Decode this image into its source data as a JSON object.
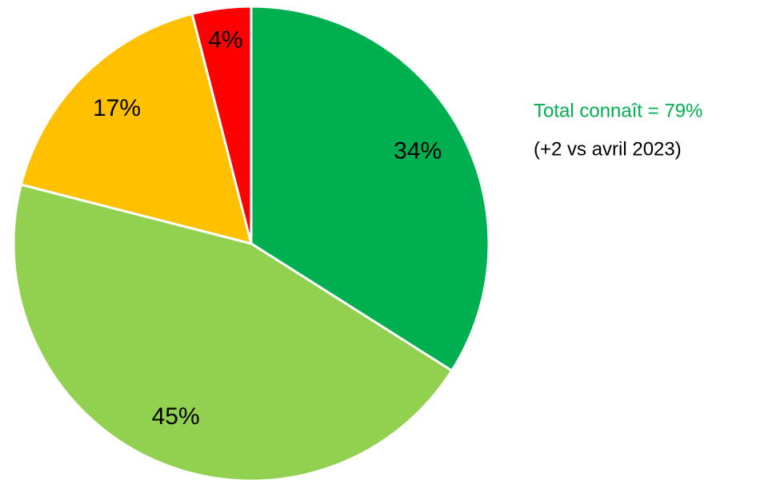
{
  "chart_data": {
    "type": "pie",
    "values": [
      34,
      45,
      17,
      4
    ],
    "value_labels": [
      "34%",
      "45%",
      "17%",
      "4%"
    ],
    "colors": [
      "#00b050",
      "#92d050",
      "#ffc000",
      "#ff0000"
    ],
    "annotations": [
      {
        "text": "Total connaît = 79%",
        "color": "#00b050"
      },
      {
        "text": "(+2 vs avril 2023)",
        "color": "#000000"
      }
    ]
  }
}
